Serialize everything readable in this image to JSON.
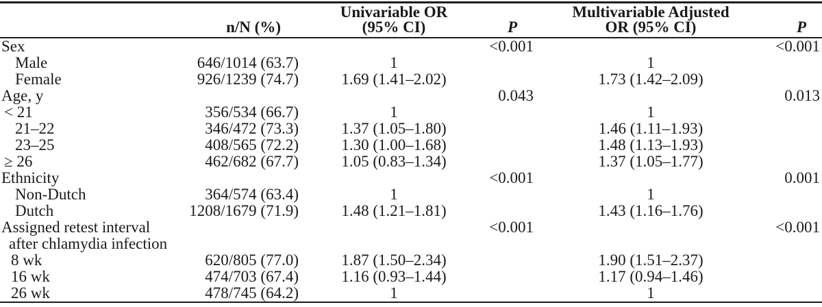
{
  "table": {
    "columns": [
      {
        "line1": "",
        "line2": ""
      },
      {
        "line1": "",
        "line2": "n/N (%)"
      },
      {
        "line1": "Univariable OR",
        "line2": "(95% CI)"
      },
      {
        "line1": "",
        "line2": "P"
      },
      {
        "line1": "Multivariable Adjusted",
        "line2": "OR (95% CI)"
      },
      {
        "line1": "",
        "line2": "P"
      }
    ],
    "rows": [
      {
        "label": "Sex",
        "indent": 0,
        "nN": "",
        "orUni": "",
        "pUni": "<0.001",
        "orMulti": "",
        "pMulti": "<0.001"
      },
      {
        "label": "Male",
        "indent": 3,
        "nN": "646/1014 (63.7)",
        "orUni": "1",
        "pUni": "",
        "orMulti": "1",
        "pMulti": ""
      },
      {
        "label": "Female",
        "indent": 3,
        "nN": "926/1239 (74.7)",
        "orUni": "1.69 (1.41–2.02)",
        "pUni": "",
        "orMulti": "1.73 (1.42–2.09)",
        "pMulti": ""
      },
      {
        "label": "Age, y",
        "indent": 0,
        "nN": "",
        "orUni": "",
        "pUni": "0.043",
        "orMulti": "",
        "pMulti": "0.013"
      },
      {
        "label": "< 21",
        "indent": 1,
        "nN": "356/534 (66.7)",
        "orUni": "1",
        "pUni": "",
        "orMulti": "1",
        "pMulti": ""
      },
      {
        "label": "21–22",
        "indent": 3,
        "nN": "346/472 (73.3)",
        "orUni": "1.37 (1.05–1.80)",
        "pUni": "",
        "orMulti": "1.46 (1.11–1.93)",
        "pMulti": ""
      },
      {
        "label": "23–25",
        "indent": 3,
        "nN": "408/565 (72.2)",
        "orUni": "1.30 (1.00–1.68)",
        "pUni": "",
        "orMulti": "1.48 (1.13–1.93)",
        "pMulti": ""
      },
      {
        "label": "≥ 26",
        "indent": 1,
        "nN": "462/682 (67.7)",
        "orUni": "1.05 (0.83–1.34)",
        "pUni": "",
        "orMulti": "1.37 (1.05–1.77)",
        "pMulti": ""
      },
      {
        "label": "Ethnicity",
        "indent": 0,
        "nN": "",
        "orUni": "",
        "pUni": "<0.001",
        "orMulti": "",
        "pMulti": "0.001"
      },
      {
        "label": "Non-Dutch",
        "indent": 3,
        "nN": "364/574 (63.4)",
        "orUni": "1",
        "pUni": "",
        "orMulti": "1",
        "pMulti": ""
      },
      {
        "label": "Dutch",
        "indent": 3,
        "nN": "1208/1679 (71.9)",
        "orUni": "1.48 (1.21–1.81)",
        "pUni": "",
        "orMulti": "1.43 (1.16–1.76)",
        "pMulti": ""
      },
      {
        "label": "Assigned retest interval",
        "label2": "after chlamydia infection",
        "indent": 0,
        "nN": "",
        "orUni": "",
        "pUni": "<0.001",
        "orMulti": "",
        "pMulti": "<0.001"
      },
      {
        "label": "8 wk",
        "indent": 2,
        "nN": "620/805 (77.0)",
        "orUni": "1.87 (1.50–2.34)",
        "pUni": "",
        "orMulti": "1.90 (1.51–2.37)",
        "pMulti": ""
      },
      {
        "label": "16 wk",
        "indent": 2,
        "nN": "474/703 (67.4)",
        "orUni": "1.16 (0.93–1.44)",
        "pUni": "",
        "orMulti": "1.17 (0.94–1.46)",
        "pMulti": ""
      },
      {
        "label": "26 wk",
        "indent": 2,
        "nN": "478/745 (64.2)",
        "orUni": "1",
        "pUni": "",
        "orMulti": "1",
        "pMulti": ""
      }
    ]
  }
}
